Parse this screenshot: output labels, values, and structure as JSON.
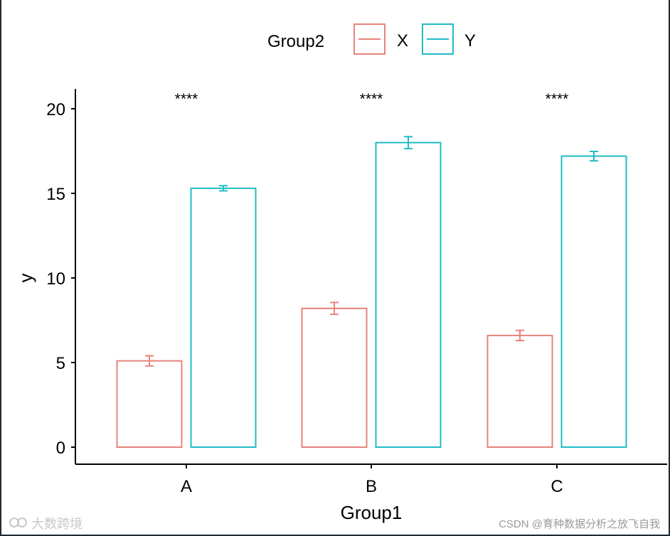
{
  "chart_data": {
    "type": "bar",
    "title": "",
    "xlabel": "Group1",
    "ylabel": "y",
    "categories": [
      "A",
      "B",
      "C"
    ],
    "ylim": [
      0,
      21
    ],
    "yticks": [
      0,
      5,
      10,
      15,
      20
    ],
    "legend": {
      "title": "Group2",
      "position": "top"
    },
    "series": [
      {
        "name": "X",
        "color": "#e8837a",
        "values": [
          5.1,
          8.2,
          6.6
        ],
        "errors": [
          0.3,
          0.35,
          0.3
        ]
      },
      {
        "name": "Y",
        "color": "#1fbcc6",
        "values": [
          15.3,
          18.0,
          17.2
        ],
        "errors": [
          0.15,
          0.35,
          0.28
        ]
      }
    ],
    "annotations": [
      {
        "category": "A",
        "label": "****"
      },
      {
        "category": "B",
        "label": "****"
      },
      {
        "category": "C",
        "label": "****"
      }
    ]
  },
  "watermarks": {
    "left": "大数跨境",
    "right": "CSDN @育种数据分析之放飞自我"
  }
}
